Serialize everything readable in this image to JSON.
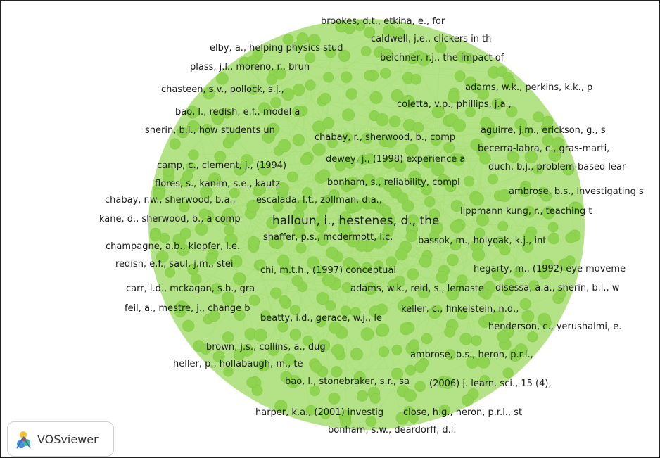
{
  "app": {
    "brand_name": "VOSviewer",
    "brand_icon": "vosviewer-logo-icon"
  },
  "colors": {
    "node": "#8fd450",
    "node_dark": "#7cc23c",
    "edge": "#a6dd72",
    "label": "#1a1a1a"
  },
  "network": {
    "labels": [
      "brookes, d.t., etkina, e., for",
      "caldwell, j.e., clickers in th",
      "elby, a., helping physics stud",
      "beichner, r.j., the impact of",
      "plass, j.l., moreno, r., brun",
      "chasteen, s.v., pollock, s.j.,",
      "adams, w.k., perkins, k.k., p",
      "coletta, v.p., phillips, j.a.,",
      "bao, l., redish, e.f., model a",
      "sherin, b.l., how students un",
      "aguirre, j.m., erickson, g., s",
      "chabay, r., sherwood, b., comp",
      "becerra-labra, c., gras-marti,",
      "dewey, j., (1998) experience a",
      "camp, c., clement, j., (1994)",
      "duch, b.j., problem-based lear",
      "bonham, s., reliability, compl",
      "flores, s., kanim, s.e., kautz",
      "ambrose, b.s., investigating s",
      "chabay, r.w., sherwood, b.a.,",
      "escalada, l.t., zollman, d.a.,",
      "lippmann kung, r., teaching t",
      "kane, d., sherwood, b., a comp",
      "halloun, i., hestenes, d., the",
      "shaffer, p.s., mcdermott, l.c.",
      "bassok, m., holyoak, k.j., int",
      "champagne, a.b., klopfer, l.e.",
      "redish, e.f., saul, j.m., stei",
      "chi, m.t.h., (1997) conceptual",
      "hegarty, m., (1992) eye moveme",
      "carr, l.d., mckagan, s.b., gra",
      "adams, w.k., reid, s., lemaste",
      "disessa, a.a., sherin, b.l., w",
      "feil, a., mestre, j., change b",
      "keller, c., finkelstein, n.d.,",
      "beatty, i.d., gerace, w.j., le",
      "henderson, c., yerushalmi, e.",
      "brown, j.s., collins, a., dug",
      "ambrose, b.s., heron, p.r.l.,",
      "heller, p., hollabaugh, m., te",
      "bao, l., stonebraker, s.r., sa",
      "(2006) j. learn. sci., 15 (4),",
      "harper, k.a., (2001) investig",
      "close, h.g., heron, p.r.l., st",
      "bonham, s.w., deardorff, d.l."
    ]
  }
}
